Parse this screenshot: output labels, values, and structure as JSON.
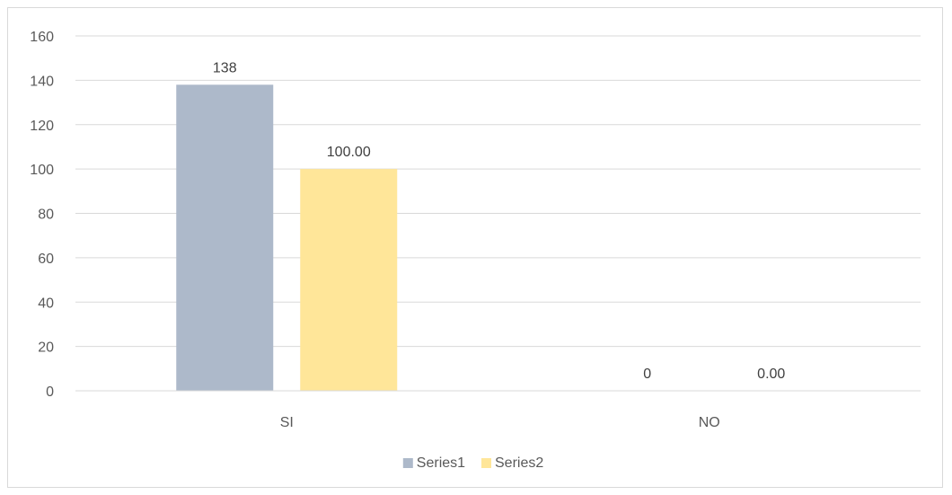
{
  "chart_data": {
    "type": "bar",
    "categories": [
      "SI",
      "NO"
    ],
    "series": [
      {
        "name": "Series1",
        "values": [
          138,
          0
        ],
        "labels": [
          "138",
          "0"
        ],
        "color": "#adb9ca"
      },
      {
        "name": "Series2",
        "values": [
          100,
          0
        ],
        "labels": [
          "100.00",
          "0.00"
        ],
        "color": "#ffe699"
      }
    ],
    "title": "",
    "xlabel": "",
    "ylabel": "",
    "ylim": [
      0,
      160
    ],
    "yticks": [
      0,
      20,
      40,
      60,
      80,
      100,
      120,
      140,
      160
    ],
    "grid": true,
    "legend_position": "bottom",
    "gridline_color": "#d9d9d9",
    "axis_color": "#d9d9d9"
  }
}
